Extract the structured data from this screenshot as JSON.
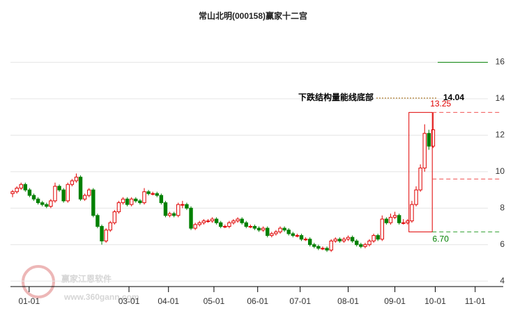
{
  "chart_data": {
    "type": "candlestick",
    "title": "常山北明(000158)赢家十二宫",
    "watermark": "赢家江恩软件",
    "watermark_url": "www.360gann.com",
    "x": [
      0,
      1,
      2,
      3,
      4,
      5,
      6,
      7,
      8,
      9,
      10,
      11,
      12,
      13,
      14,
      15,
      16,
      17,
      18,
      19,
      20,
      21,
      22,
      23,
      24,
      25,
      26,
      27,
      28,
      29,
      30,
      31,
      32,
      33,
      34,
      35,
      36,
      37,
      38,
      39,
      40,
      41,
      42,
      43,
      44,
      45,
      46,
      47,
      48,
      49,
      50,
      51,
      52,
      53,
      54,
      55,
      56,
      57,
      58,
      59,
      60,
      61,
      62,
      63,
      64,
      65,
      66,
      67,
      68,
      69,
      70,
      71,
      72,
      73,
      74,
      75,
      76,
      77,
      78,
      79,
      80,
      81,
      82,
      83,
      84,
      85,
      86,
      87,
      88,
      89,
      90,
      91,
      92,
      93,
      94,
      95,
      96,
      97,
      98,
      99
    ],
    "open": [
      8.8,
      8.9,
      9.1,
      9.3,
      9.0,
      8.7,
      8.5,
      8.3,
      8.2,
      8.1,
      8.4,
      9.2,
      9.0,
      8.4,
      9.3,
      9.5,
      9.7,
      8.5,
      8.7,
      9.0,
      7.6,
      7.0,
      6.2,
      6.8,
      7.2,
      7.8,
      8.3,
      8.5,
      8.2,
      8.5,
      8.4,
      8.3,
      8.9,
      8.8,
      8.8,
      8.7,
      8.3,
      7.6,
      7.7,
      7.6,
      8.2,
      8.2,
      8.0,
      6.9,
      7.1,
      7.2,
      7.3,
      7.3,
      7.4,
      7.2,
      7.0,
      7.0,
      7.2,
      7.3,
      7.4,
      7.2,
      7.0,
      7.0,
      6.9,
      6.8,
      6.9,
      6.5,
      6.6,
      6.7,
      6.9,
      6.8,
      6.6,
      6.5,
      6.5,
      6.3,
      6.3,
      6.0,
      5.9,
      5.8,
      5.8,
      5.7,
      6.2,
      6.3,
      6.2,
      6.3,
      6.4,
      6.2,
      6.0,
      5.9,
      6.0,
      6.2,
      6.5,
      6.3,
      7.4,
      7.2,
      7.5,
      7.6,
      7.2,
      7.2,
      7.3,
      8.2,
      9.0,
      10.2,
      12.1,
      11.4
    ],
    "high": [
      9.0,
      9.2,
      9.4,
      9.4,
      9.1,
      8.8,
      8.6,
      8.4,
      8.3,
      8.5,
      9.4,
      9.3,
      9.1,
      9.4,
      9.6,
      9.9,
      9.8,
      8.8,
      9.1,
      9.1,
      7.7,
      7.1,
      6.9,
      7.3,
      7.9,
      8.4,
      8.6,
      8.6,
      8.6,
      8.6,
      8.5,
      9.1,
      9.0,
      8.9,
      8.9,
      8.8,
      8.4,
      7.8,
      7.8,
      8.3,
      8.4,
      8.3,
      8.1,
      7.2,
      7.3,
      7.4,
      7.4,
      7.5,
      7.5,
      7.3,
      7.1,
      7.3,
      7.4,
      7.5,
      7.5,
      7.3,
      7.1,
      7.1,
      7.0,
      7.0,
      7.0,
      6.7,
      6.8,
      7.0,
      7.0,
      6.9,
      6.7,
      6.6,
      6.6,
      6.4,
      6.4,
      6.1,
      6.0,
      5.9,
      5.9,
      6.3,
      6.4,
      6.4,
      6.4,
      6.5,
      6.5,
      6.3,
      6.1,
      6.1,
      6.3,
      6.6,
      6.6,
      7.6,
      7.5,
      7.7,
      7.8,
      7.7,
      7.4,
      7.4,
      8.4,
      9.2,
      10.4,
      12.6,
      12.3,
      13.25
    ],
    "low": [
      8.6,
      8.8,
      9.0,
      8.9,
      8.6,
      8.4,
      8.2,
      8.1,
      8.0,
      8.0,
      8.3,
      8.9,
      8.3,
      8.3,
      9.2,
      9.4,
      8.4,
      8.4,
      8.6,
      7.5,
      6.9,
      6.0,
      6.1,
      6.7,
      7.1,
      7.7,
      8.2,
      8.1,
      8.1,
      8.3,
      8.2,
      8.2,
      8.7,
      8.7,
      8.6,
      8.2,
      7.5,
      7.5,
      7.5,
      7.5,
      8.0,
      7.9,
      6.8,
      6.8,
      7.0,
      7.1,
      7.2,
      7.2,
      7.1,
      6.9,
      6.9,
      6.9,
      7.1,
      7.2,
      7.1,
      6.9,
      6.9,
      6.8,
      6.7,
      6.7,
      6.4,
      6.4,
      6.5,
      6.6,
      6.7,
      6.5,
      6.4,
      6.4,
      6.2,
      6.2,
      5.9,
      5.8,
      5.7,
      5.7,
      5.6,
      5.6,
      6.1,
      6.1,
      6.1,
      6.2,
      6.1,
      5.9,
      5.8,
      5.8,
      5.9,
      6.1,
      6.2,
      6.2,
      7.1,
      7.1,
      7.4,
      7.1,
      7.1,
      7.1,
      7.2,
      8.1,
      8.9,
      10.0,
      11.2,
      11.3
    ],
    "close": [
      8.9,
      9.1,
      9.3,
      9.0,
      8.7,
      8.5,
      8.3,
      8.2,
      8.1,
      8.4,
      9.2,
      9.0,
      8.4,
      9.3,
      9.5,
      9.7,
      8.5,
      8.7,
      9.0,
      7.6,
      7.0,
      6.2,
      6.8,
      7.2,
      7.8,
      8.3,
      8.5,
      8.2,
      8.5,
      8.4,
      8.3,
      8.9,
      8.8,
      8.8,
      8.7,
      8.3,
      7.6,
      7.7,
      7.6,
      8.2,
      8.2,
      8.0,
      6.9,
      7.1,
      7.2,
      7.3,
      7.3,
      7.4,
      7.2,
      7.0,
      7.0,
      7.2,
      7.3,
      7.4,
      7.2,
      7.0,
      7.0,
      6.9,
      6.8,
      6.9,
      6.5,
      6.6,
      6.7,
      6.9,
      6.8,
      6.6,
      6.5,
      6.5,
      6.3,
      6.3,
      6.0,
      5.9,
      5.8,
      5.8,
      5.7,
      6.2,
      6.3,
      6.2,
      6.3,
      6.4,
      6.2,
      6.0,
      5.9,
      6.0,
      6.2,
      6.5,
      6.3,
      7.4,
      7.2,
      7.5,
      7.6,
      7.2,
      7.2,
      7.3,
      8.2,
      9.0,
      10.2,
      12.1,
      11.4,
      12.3
    ],
    "up_color": "#e00000",
    "down_color": "#008000",
    "xlim": [
      -0.5,
      115.5
    ],
    "xticks": [
      {
        "value": 3.9,
        "label": "01-01"
      },
      {
        "value": 27.4,
        "label": "03-01"
      },
      {
        "value": 36.7,
        "label": "04-01"
      },
      {
        "value": 47.4,
        "label": "05-01"
      },
      {
        "value": 57.7,
        "label": "06-01"
      },
      {
        "value": 67.7,
        "label": "07-01"
      },
      {
        "value": 79,
        "label": "08-01"
      },
      {
        "value": 90,
        "label": "09-01"
      },
      {
        "value": 99.5,
        "label": "10-01"
      },
      {
        "value": 108.9,
        "label": "11-01"
      }
    ],
    "ylim": [
      3.7,
      17.7
    ],
    "yticks": [
      4,
      6,
      8,
      10,
      12,
      14,
      16
    ],
    "grid": true,
    "box": {
      "x": [
        93.3,
        98.8
      ],
      "top": 13.25,
      "bottom": 6.7,
      "top_label": "13.25",
      "bottom_label": "6.70",
      "mid": 9.6
    },
    "target": {
      "value": 14.04,
      "label": "14.04",
      "text": "下跌结构量能线底部",
      "upper": 16.0
    }
  }
}
